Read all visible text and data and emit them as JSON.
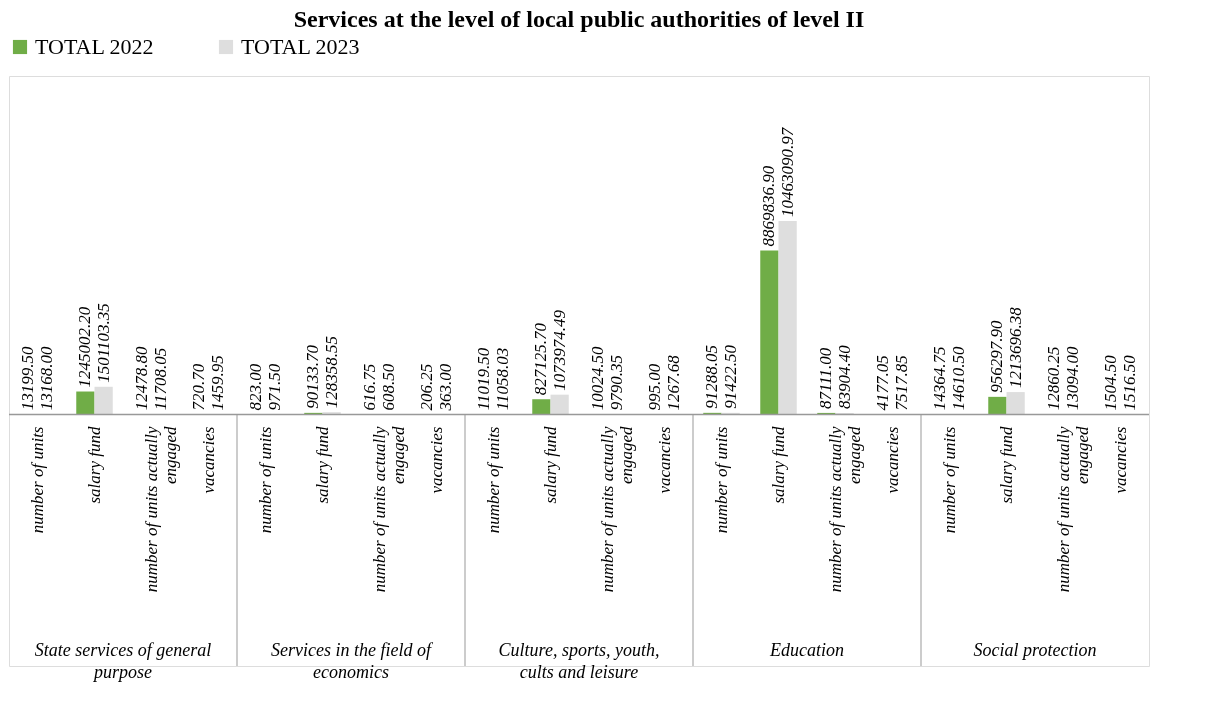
{
  "chart_data": {
    "type": "bar",
    "title": "Services at the level of local public authorities of level II",
    "categories": [
      "number of units",
      "salary fund",
      "number of units actually engaged",
      "vacancies",
      "number of units",
      "salary fund",
      "number of units actually engaged",
      "vacancies",
      "number of units",
      "salary fund",
      "number of units actually engaged",
      "vacancies",
      "number of units",
      "salary fund",
      "number of units actually engaged",
      "vacancies",
      "number of units",
      "salary fund",
      "number of units actually engaged",
      "vacancies"
    ],
    "series": [
      {
        "name": "TOTAL 2022",
        "color": "#70ad47",
        "values": [
          13199.5,
          1245002.2,
          12478.8,
          720.7,
          823.0,
          90133.7,
          616.75,
          206.25,
          11019.5,
          827125.7,
          10024.5,
          995.0,
          91288.05,
          8869836.9,
          87111.0,
          4177.05,
          14364.75,
          956297.9,
          12860.25,
          1504.5
        ],
        "value_labels": [
          "13199.50",
          "1245002.20",
          "12478.80",
          "720.70",
          "823.00",
          "90133.70",
          "616.75",
          "206.25",
          "11019.50",
          "827125.70",
          "10024.50",
          "995.00",
          "91288.05",
          "8869836.90",
          "87111.00",
          "4177.05",
          "14364.75",
          "956297.90",
          "12860.25",
          "1504.50"
        ]
      },
      {
        "name": "TOTAL 2023",
        "color": "#dedede",
        "values": [
          13168.0,
          1501103.35,
          11708.05,
          1459.95,
          971.5,
          128358.55,
          608.5,
          363.0,
          11058.03,
          1073974.49,
          9790.35,
          1267.68,
          91422.5,
          10463090.97,
          83904.4,
          7517.85,
          14610.5,
          1213696.38,
          13094.0,
          1516.5
        ],
        "value_labels": [
          "13168.00",
          "1501103.35",
          "11708.05",
          "1459.95",
          "971.50",
          "128358.55",
          "608.50",
          "363.00",
          "11058.03",
          "1073974.49",
          "9790.35",
          "1267.68",
          "91422.50",
          "10463090.97",
          "83904.40",
          "7517.85",
          "14610.50",
          "1213696.38",
          "13094.00",
          "1516.50"
        ]
      }
    ],
    "annotations": [
      "State services of general purpose",
      "Services in the field of economics",
      "Culture, sports, youth, cults and leisure",
      "Education",
      "Social protection"
    ],
    "legend": "top"
  }
}
